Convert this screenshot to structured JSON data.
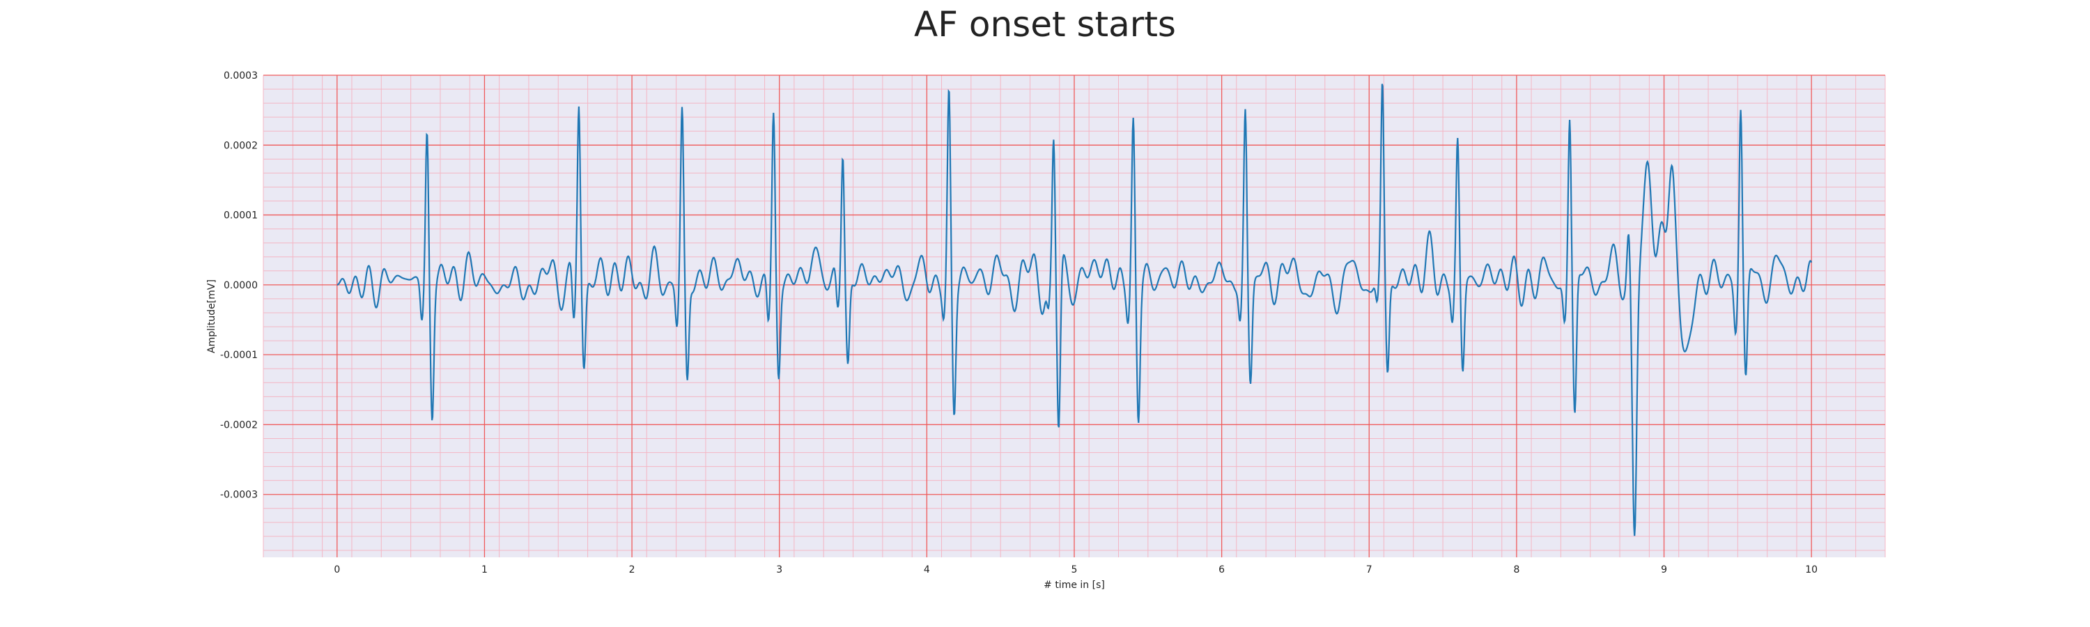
{
  "chart_data": {
    "type": "line",
    "title": "AF onset starts",
    "xlabel": "# time in [s]",
    "ylabel": "Amplitude[mV]",
    "xlim": [
      -0.5,
      10.5
    ],
    "ylim": [
      -0.00039,
      0.0003
    ],
    "x_ticks": [
      0,
      1,
      2,
      3,
      4,
      5,
      6,
      7,
      8,
      9,
      10
    ],
    "x_tick_labels": [
      "0",
      "1",
      "2",
      "3",
      "4",
      "5",
      "6",
      "7",
      "8",
      "9",
      "10"
    ],
    "y_ticks": [
      0.0003,
      0.0002,
      0.0001,
      0.0,
      -0.0001,
      -0.0002,
      -0.0003
    ],
    "y_tick_labels": [
      "0.0003",
      "0.0002",
      "0.0001",
      "0.0000",
      "-0.0001",
      "-0.0002",
      "-0.0003"
    ],
    "grid": true,
    "grid_style": "ECG paper: major red lines at every tick, minor pink lines",
    "sample_rate_hz": 250,
    "series": [
      {
        "color": "#1f77b4",
        "beats": [
          {
            "t": 0.61,
            "r": 0.000222,
            "q": -5e-05,
            "s": -0.000188
          },
          {
            "t": 1.64,
            "r": 0.000263,
            "q": -7e-05,
            "s": -0.000118
          },
          {
            "t": 2.34,
            "r": 0.000242,
            "q": -6e-05,
            "s": -0.000148
          },
          {
            "t": 2.96,
            "r": 0.000239,
            "q": -6e-05,
            "s": -0.000135
          },
          {
            "t": 3.43,
            "r": 0.0002,
            "q": -5e-05,
            "s": -0.000118
          },
          {
            "t": 4.15,
            "r": 0.000263,
            "q": -4e-05,
            "s": -0.00018
          },
          {
            "t": 4.86,
            "r": 0.000214,
            "q": -4e-05,
            "s": -0.000225
          },
          {
            "t": 5.4,
            "r": 0.000226,
            "q": -4e-05,
            "s": -0.00019
          },
          {
            "t": 6.16,
            "r": 0.000245,
            "q": -5e-05,
            "s": -0.00014
          },
          {
            "t": 7.09,
            "r": 0.000278,
            "q": -4e-05,
            "s": -0.00013
          },
          {
            "t": 7.6,
            "r": 0.0002,
            "q": -5e-05,
            "s": -0.000128
          },
          {
            "t": 8.36,
            "r": 0.000247,
            "q": -5e-05,
            "s": -0.000198
          },
          {
            "t": 9.52,
            "r": 0.000264,
            "q": -6e-05,
            "s": -0.000146
          }
        ],
        "ectopic_beat": {
          "t": 8.8,
          "pre_peak": 8e-05,
          "trough": -0.000358,
          "plateau": [
            0.000155,
            0.00011,
            0.000146
          ],
          "post_trough": -8.5e-05
        }
      }
    ]
  }
}
